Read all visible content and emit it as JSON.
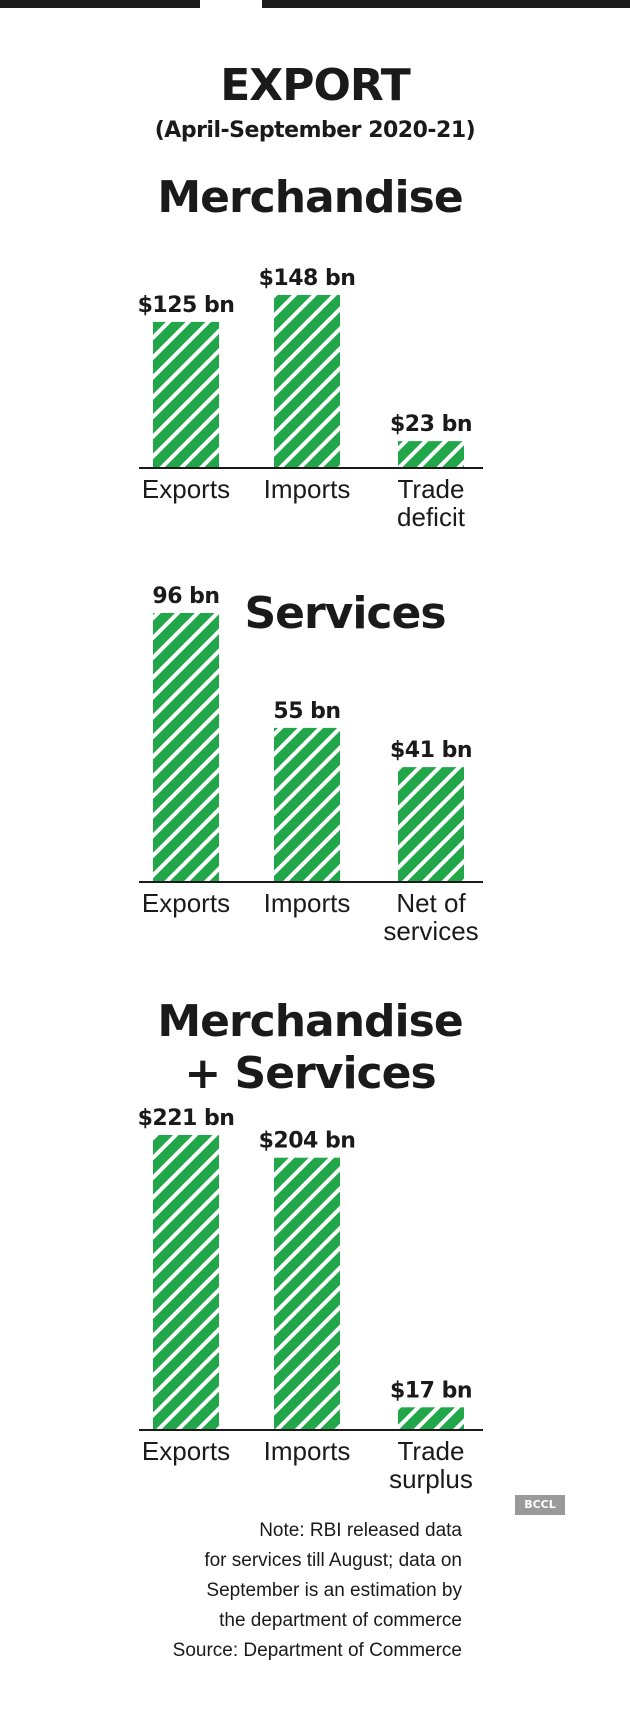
{
  "header": {
    "title": "EXPORT",
    "subtitle": "(April-September 2020-21)"
  },
  "colors": {
    "bar_fill": "#22a64a",
    "hatch": "#ffffff",
    "axis": "#1a1a1a"
  },
  "chart_data": [
    {
      "type": "bar",
      "title": "Merchandise",
      "categories": [
        "Exports",
        "Imports",
        "Trade\ndeficit"
      ],
      "values": [
        125,
        148,
        23
      ],
      "value_labels": [
        "$125 bn",
        "$148 bn",
        "$23 bn"
      ],
      "ylim": [
        0,
        148
      ]
    },
    {
      "type": "bar",
      "title": "Services",
      "categories": [
        "Exports",
        "Imports",
        "Net of\nservices"
      ],
      "values": [
        96,
        55,
        41
      ],
      "value_labels": [
        "96 bn",
        "55 bn",
        "$41 bn"
      ],
      "ylim": [
        0,
        96
      ]
    },
    {
      "type": "bar",
      "title": "Merchandise\n+ Services",
      "categories": [
        "Exports",
        "Imports",
        "Trade\nsurplus"
      ],
      "values": [
        221,
        204,
        17
      ],
      "value_labels": [
        "$221 bn",
        "$204 bn",
        "$17 bn"
      ],
      "ylim": [
        0,
        221
      ]
    }
  ],
  "note": {
    "lines": [
      "Note: RBI released data",
      "for services till August; data on",
      "September is an estimation by",
      "the department of commerce",
      "Source: Department of Commerce"
    ]
  },
  "logo": {
    "text": "BCCL"
  }
}
